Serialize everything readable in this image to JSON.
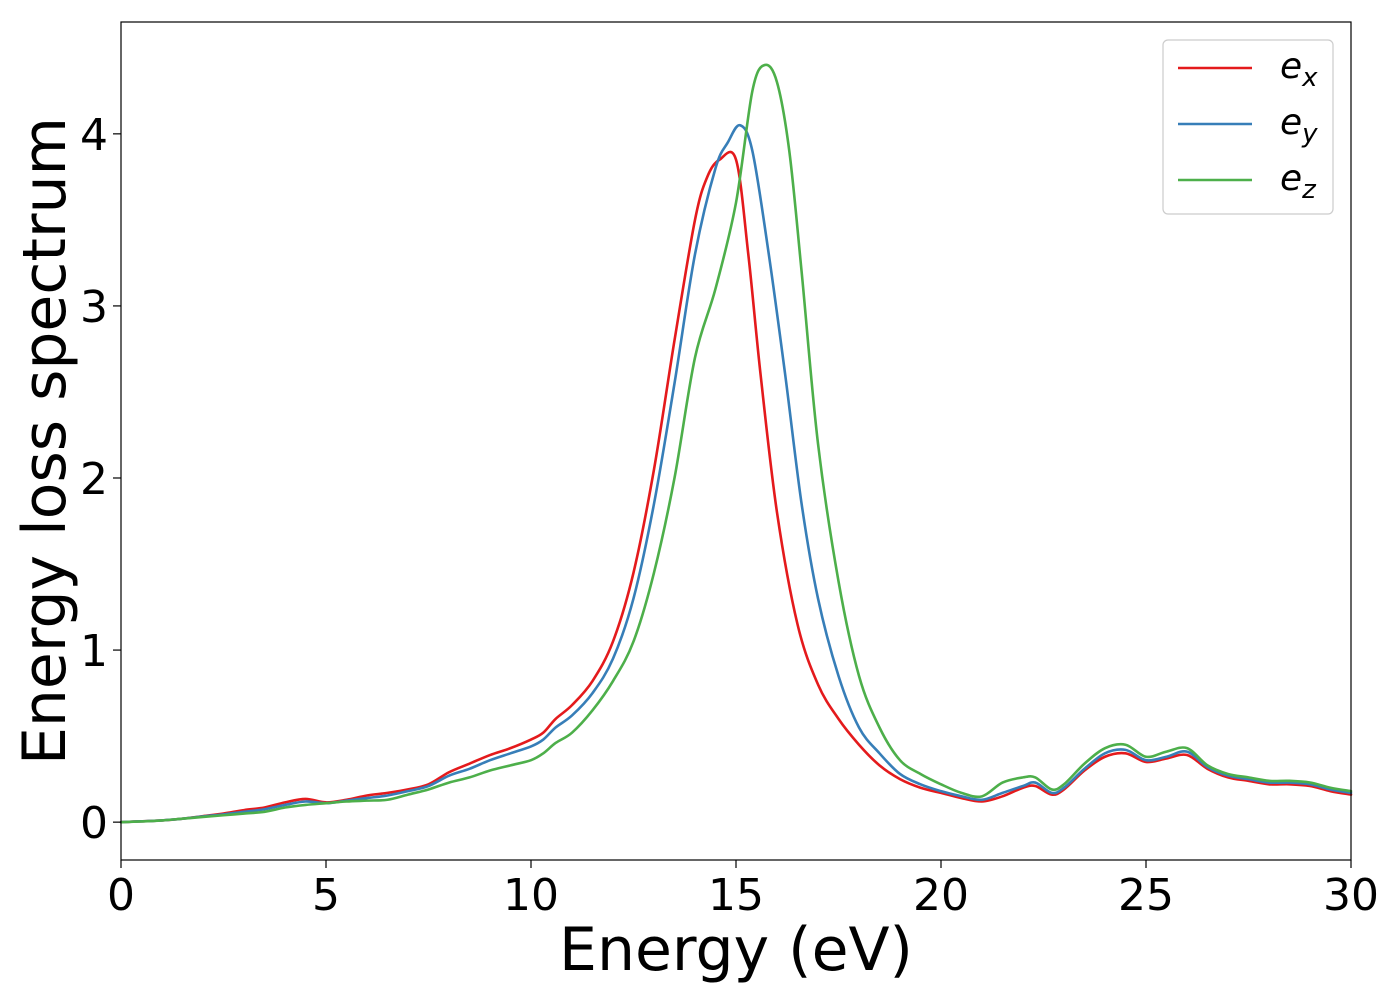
{
  "chart_data": {
    "type": "line",
    "title": "",
    "xlabel": "Energy (eV)",
    "ylabel": "Energy loss spectrum",
    "xlim": [
      0,
      30
    ],
    "ylim": [
      -0.22,
      4.65
    ],
    "xticks": [
      0,
      5,
      10,
      15,
      20,
      25,
      30
    ],
    "yticks": [
      0,
      1,
      2,
      3,
      4
    ],
    "grid": false,
    "legend": "top-right",
    "series": [
      {
        "name": "e",
        "subscript": "x",
        "color": "#e41a1c",
        "x": [
          0,
          0.5,
          1,
          1.5,
          2,
          2.5,
          3,
          3.5,
          4,
          4.5,
          5,
          5.5,
          6,
          6.5,
          7,
          7.5,
          8,
          8.5,
          9,
          9.5,
          10,
          10.3,
          10.6,
          11,
          11.5,
          12,
          12.5,
          13,
          13.5,
          14,
          14.3,
          14.6,
          15,
          15.3,
          15.6,
          16,
          16.5,
          17,
          17.5,
          18,
          18.5,
          19,
          19.5,
          20,
          20.5,
          21,
          21.5,
          22,
          22.3,
          22.7,
          23,
          23.5,
          24,
          24.5,
          25,
          25.5,
          26,
          26.5,
          27,
          27.5,
          28,
          28.5,
          29,
          29.5,
          30
        ],
        "y": [
          0,
          0.005,
          0.01,
          0.02,
          0.035,
          0.05,
          0.07,
          0.085,
          0.115,
          0.135,
          0.115,
          0.13,
          0.155,
          0.17,
          0.19,
          0.22,
          0.29,
          0.34,
          0.39,
          0.43,
          0.48,
          0.52,
          0.6,
          0.68,
          0.82,
          1.05,
          1.45,
          2.05,
          2.8,
          3.5,
          3.75,
          3.85,
          3.85,
          3.3,
          2.6,
          1.8,
          1.15,
          0.8,
          0.6,
          0.45,
          0.33,
          0.25,
          0.2,
          0.17,
          0.14,
          0.12,
          0.15,
          0.2,
          0.21,
          0.16,
          0.19,
          0.3,
          0.38,
          0.4,
          0.35,
          0.37,
          0.39,
          0.31,
          0.26,
          0.24,
          0.22,
          0.22,
          0.21,
          0.18,
          0.16
        ]
      },
      {
        "name": "e",
        "subscript": "y",
        "color": "#377eb8",
        "x": [
          0,
          0.5,
          1,
          1.5,
          2,
          2.5,
          3,
          3.5,
          4,
          4.5,
          5,
          5.5,
          6,
          6.5,
          7,
          7.5,
          8,
          8.5,
          9,
          9.5,
          10,
          10.3,
          10.6,
          11,
          11.5,
          12,
          12.5,
          13,
          13.5,
          14,
          14.5,
          14.8,
          15.1,
          15.4,
          15.8,
          16.2,
          16.6,
          17,
          17.5,
          18,
          18.5,
          19,
          19.5,
          20,
          20.5,
          21,
          21.5,
          22,
          22.3,
          22.7,
          23,
          23.5,
          24,
          24.5,
          25,
          25.5,
          26,
          26.5,
          27,
          27.5,
          28,
          28.5,
          29,
          29.5,
          30
        ],
        "y": [
          0,
          0.005,
          0.01,
          0.02,
          0.033,
          0.045,
          0.06,
          0.075,
          0.1,
          0.12,
          0.11,
          0.125,
          0.14,
          0.155,
          0.18,
          0.21,
          0.27,
          0.31,
          0.36,
          0.4,
          0.44,
          0.48,
          0.55,
          0.62,
          0.75,
          0.95,
          1.3,
          1.85,
          2.55,
          3.3,
          3.8,
          3.95,
          4.05,
          3.9,
          3.3,
          2.6,
          1.85,
          1.3,
          0.85,
          0.55,
          0.4,
          0.28,
          0.22,
          0.18,
          0.15,
          0.13,
          0.17,
          0.21,
          0.23,
          0.17,
          0.2,
          0.31,
          0.4,
          0.42,
          0.36,
          0.38,
          0.41,
          0.32,
          0.27,
          0.25,
          0.23,
          0.23,
          0.22,
          0.19,
          0.17
        ]
      },
      {
        "name": "e",
        "subscript": "z",
        "color": "#4daf4a",
        "x": [
          0,
          0.5,
          1,
          1.5,
          2,
          2.5,
          3,
          3.5,
          4,
          4.5,
          5,
          5.5,
          6,
          6.5,
          7,
          7.5,
          8,
          8.5,
          9,
          9.5,
          10,
          10.3,
          10.6,
          11,
          11.5,
          12,
          12.5,
          13,
          13.5,
          14,
          14.5,
          15,
          15.4,
          15.7,
          16,
          16.3,
          16.6,
          17,
          17.5,
          18,
          18.5,
          19,
          19.5,
          20,
          20.5,
          21,
          21.5,
          22,
          22.3,
          22.7,
          23,
          23.5,
          24,
          24.5,
          25,
          25.5,
          26,
          26.5,
          27,
          27.5,
          28,
          28.5,
          29,
          29.5,
          30
        ],
        "y": [
          0,
          0.004,
          0.01,
          0.02,
          0.03,
          0.04,
          0.05,
          0.06,
          0.085,
          0.1,
          0.11,
          0.12,
          0.125,
          0.13,
          0.16,
          0.19,
          0.23,
          0.26,
          0.3,
          0.33,
          0.36,
          0.4,
          0.46,
          0.52,
          0.65,
          0.82,
          1.05,
          1.45,
          2.0,
          2.7,
          3.1,
          3.6,
          4.25,
          4.4,
          4.3,
          3.9,
          3.2,
          2.2,
          1.4,
          0.85,
          0.55,
          0.36,
          0.28,
          0.22,
          0.17,
          0.15,
          0.23,
          0.26,
          0.26,
          0.19,
          0.22,
          0.34,
          0.43,
          0.45,
          0.38,
          0.41,
          0.43,
          0.33,
          0.28,
          0.26,
          0.24,
          0.24,
          0.23,
          0.2,
          0.18
        ]
      }
    ]
  }
}
